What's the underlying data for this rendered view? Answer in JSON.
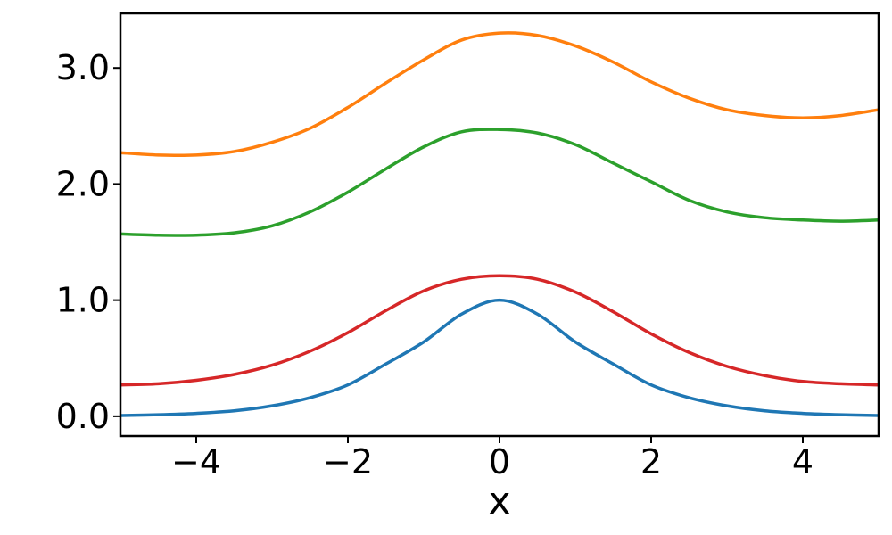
{
  "chart_data": {
    "type": "line",
    "title": "",
    "xlabel": "x",
    "ylabel": "",
    "xlim": [
      -5,
      5
    ],
    "ylim": [
      -0.17,
      3.47
    ],
    "grid": false,
    "legend": "none",
    "x_ticks": [
      {
        "value": -4,
        "label": "−4"
      },
      {
        "value": -2,
        "label": "−2"
      },
      {
        "value": 0,
        "label": "0"
      },
      {
        "value": 2,
        "label": "2"
      },
      {
        "value": 4,
        "label": "4"
      }
    ],
    "y_ticks": [
      {
        "value": 0,
        "label": "0.0"
      },
      {
        "value": 1,
        "label": "1.0"
      },
      {
        "value": 2,
        "label": "2.0"
      },
      {
        "value": 3,
        "label": "3.0"
      }
    ],
    "x": [
      -5,
      -4.5,
      -4,
      -3.5,
      -3,
      -2.5,
      -2,
      -1.5,
      -1,
      -0.5,
      0,
      0.5,
      1,
      1.5,
      2,
      2.5,
      3,
      3.5,
      4,
      4.5,
      5
    ],
    "series": [
      {
        "color": "#1f77b4",
        "values": [
          0.007,
          0.013,
          0.025,
          0.047,
          0.09,
          0.16,
          0.27,
          0.45,
          0.64,
          0.88,
          1.0,
          0.88,
          0.64,
          0.45,
          0.27,
          0.16,
          0.09,
          0.047,
          0.025,
          0.013,
          0.007
        ]
      },
      {
        "color": "#ff7f0e",
        "values": [
          2.27,
          2.25,
          2.25,
          2.28,
          2.36,
          2.48,
          2.66,
          2.87,
          3.07,
          3.24,
          3.3,
          3.28,
          3.19,
          3.05,
          2.88,
          2.74,
          2.64,
          2.59,
          2.57,
          2.59,
          2.64
        ]
      },
      {
        "color": "#2ca02c",
        "values": [
          1.57,
          1.56,
          1.56,
          1.58,
          1.64,
          1.76,
          1.93,
          2.13,
          2.32,
          2.45,
          2.47,
          2.44,
          2.34,
          2.18,
          2.02,
          1.86,
          1.76,
          1.71,
          1.69,
          1.68,
          1.69
        ]
      },
      {
        "color": "#d62728",
        "values": [
          0.27,
          0.28,
          0.31,
          0.36,
          0.44,
          0.56,
          0.72,
          0.91,
          1.08,
          1.18,
          1.21,
          1.18,
          1.07,
          0.9,
          0.71,
          0.55,
          0.43,
          0.35,
          0.3,
          0.28,
          0.27
        ]
      }
    ]
  }
}
